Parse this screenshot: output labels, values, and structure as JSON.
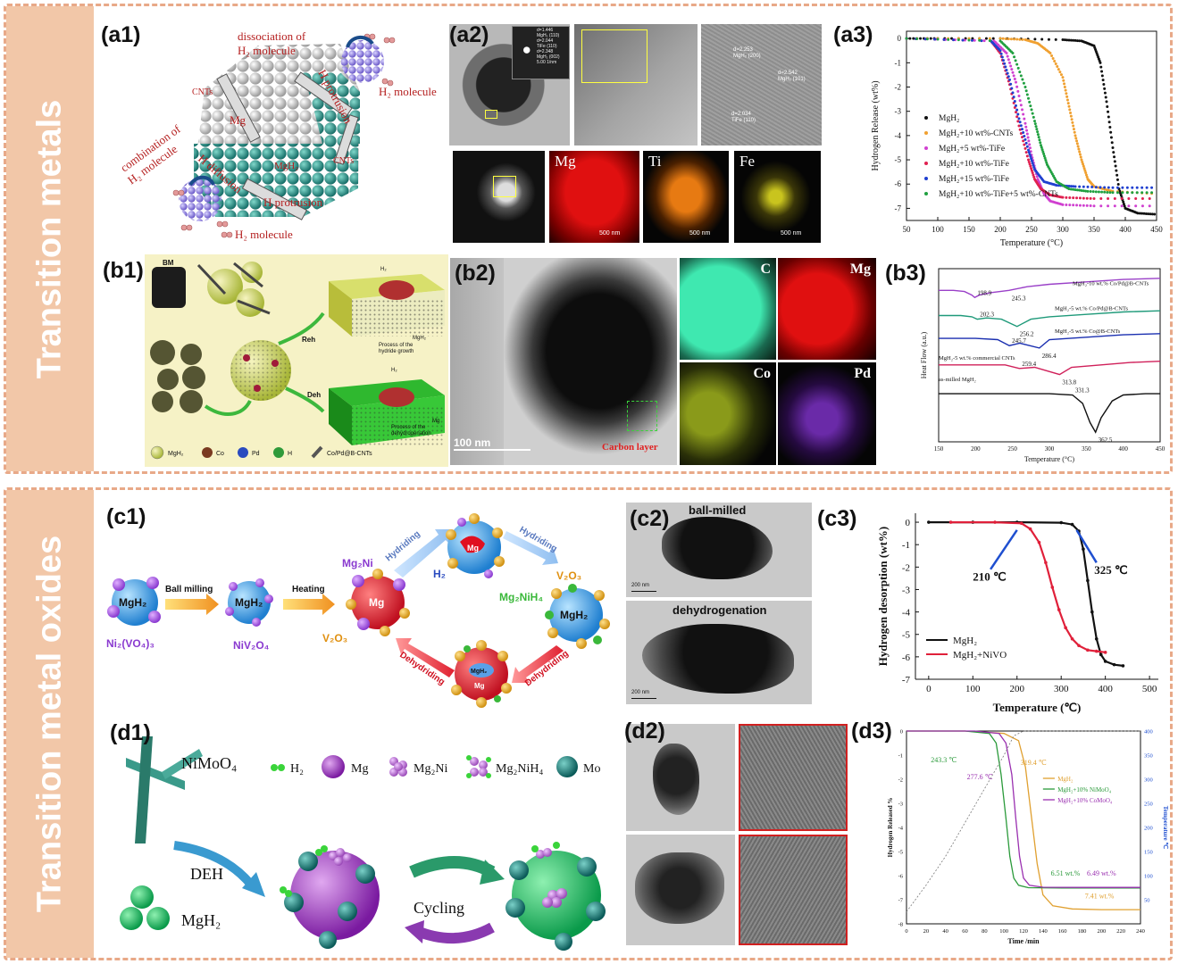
{
  "sections": {
    "top": "Transition metals",
    "bottom": "Transition metal oxides"
  },
  "labels": {
    "a1": "(a1)",
    "a2": "(a2)",
    "a3": "(a3)",
    "b1": "(b1)",
    "b2": "(b2)",
    "b3": "(b3)",
    "c1": "(c1)",
    "c2": "(c2)",
    "c3": "(c3)",
    "d1": "(d1)",
    "d2": "(d2)",
    "d3": "(d3)"
  },
  "a1": {
    "dissociation": "dissociation of",
    "h2_molecule_top": "H₂ molecule",
    "h2_molecule_right": "H₂ molecule",
    "h_protrusion_top": "H protrusion",
    "cnts_left": "CNTs",
    "cnts_right": "CNTs",
    "mg": "Mg",
    "mgh2": "MgH₂",
    "combination": "combination of",
    "h2_molecule_left": "H₂ molecule",
    "h_diffusion": "H diffusion",
    "h_protrusion": "H protrusion",
    "h2_molecule_bottom": "H₂ molecule"
  },
  "a2": {
    "maps": [
      "Mg",
      "Ti",
      "Fe"
    ],
    "scales": [
      "500 nm",
      "500 nm",
      "500 nm"
    ],
    "diffraction": [
      "d=1.446",
      "MgH₂ (110)",
      "d=2.044",
      "TiFe (110)",
      "d=2.348",
      "MgH₂ (002)",
      "5.00 1/nm"
    ],
    "hr_labels": [
      "d=2.253",
      "MgH₂ (200)",
      "d=2.542",
      "MgH₂ (101)",
      "d=2.034",
      "TiFe (110)"
    ]
  },
  "a3": {
    "legend": [
      "MgH₂",
      "MgH₂+10 wt%-CNTs",
      "MgH₂+5  wt%-TiFe",
      "MgH₂+10 wt%-TiFe",
      "MgH₂+15 wt%-TiFe",
      "MgH₂+10 wt%-TiFe+5 wt%-CNTs"
    ],
    "colors": [
      "#111111",
      "#f0a030",
      "#d040d0",
      "#e02050",
      "#2040d0",
      "#20a040"
    ]
  },
  "b1": {
    "bm": "BM",
    "reh": "Reh",
    "deh": "Deh",
    "process_top": [
      "Process of the",
      "hydride growth"
    ],
    "process_bottom": [
      "Process of the",
      "dehydrogenation"
    ],
    "h2": "H₂",
    "mgh2_tag": "MgH₂",
    "mg_tag": "Mg",
    "legend": [
      "MgH₂",
      "Co",
      "Pd",
      "H",
      "Co/Pd@B-CNTs"
    ],
    "legend_colors": [
      "#b9d24a",
      "#7a3a20",
      "#2a4bbf",
      "#2f9a3a",
      "#555555"
    ]
  },
  "b2": {
    "scale": "100 nm",
    "carbon_layer": "Carbon layer",
    "maps": [
      "C",
      "Mg",
      "Co",
      "Pd"
    ]
  },
  "b3": {
    "curves": [
      "MgH₂-10 wt.% Co/Pd@B-CNTs",
      "MgH₂-5 wt.% Co/Pd@B-CNTs",
      "MgH₂-5 wt.% Co@B-CNTs",
      "MgH₂-5 wt.% commercial CNTs",
      "as-milled MgH₂"
    ],
    "colors": [
      "#9a40c8",
      "#1f9a7a",
      "#1a2fb0",
      "#d0205a",
      "#111111"
    ],
    "peaks": [
      "198.9",
      "245.3",
      "202.3",
      "256.2",
      "245.7",
      "286.4",
      "259.4",
      "313.8",
      "331.3",
      "362.5"
    ]
  },
  "c1": {
    "mgh2_start": "MgH₂",
    "ball_milling": "Ball milling",
    "mgh2_mid": "MgH₂",
    "heating": "Heating",
    "ni2vo43": "Ni₂(VO₄)₃",
    "niv2o4": "NiV₂O₄",
    "mg2ni": "Mg₂Ni",
    "v2o3_left": "V₂O₃",
    "mg": "Mg",
    "hydriding_left": "Hydriding",
    "hydriding_right": "Hydriding",
    "h2": "H₂",
    "mg_top": "Mg",
    "v2o3_right": "V₂O₃",
    "mg2nih4": "Mg₂NiH₄",
    "mgh2_right": "MgH₂",
    "dehydriding_left": "Dehydriding",
    "dehydriding_right": "Dehydriding",
    "mgh2_bottom": "MgH₂",
    "mg_bottom": "Mg"
  },
  "c2": {
    "ball_milled": "ball-milled",
    "dehydrogenation": "dehydrogenation",
    "scale": "200 nm"
  },
  "c3": {
    "legend": [
      "MgH₂",
      "MgH₂+NiVO"
    ],
    "colors": [
      "#111111",
      "#e0203a"
    ],
    "annot_left": "210 ℃",
    "annot_right": "325 ℃"
  },
  "d1": {
    "nimoo4": "NiMoO₄",
    "legend": [
      "H₂",
      "Mg",
      "Mg₂Ni",
      "Mg₂NiH₄",
      "Mo"
    ],
    "deh": "DEH",
    "cycling": "Cycling",
    "mgh2": "MgH₂"
  },
  "d3": {
    "legend": [
      "MgH₂",
      "MgH₂+10% NiMoO₄",
      "MgH₂+10% CoMoO₄"
    ],
    "colors": [
      "#e0a030",
      "#2a9a3a",
      "#9a30b0"
    ],
    "annots": [
      "243.3 ℃",
      "277.6 ℃",
      "319.4 ℃",
      "6.51 wt.%",
      "6.49 wt.%",
      "7.41 wt.%"
    ]
  },
  "chart_data": [
    {
      "id": "a3",
      "type": "scatter",
      "xlabel": "Temperature (°C)",
      "ylabel": "Hydrogen Release (wt%)",
      "xlim": [
        50,
        450
      ],
      "ylim": [
        -7.5,
        0.3
      ],
      "xticks": [
        50,
        100,
        150,
        200,
        250,
        300,
        350,
        400,
        450
      ],
      "yticks": [
        0,
        -1,
        -2,
        -3,
        -4,
        -5,
        -6,
        -7
      ],
      "series": [
        {
          "name": "MgH₂",
          "x": [
            50,
            100,
            200,
            300,
            330,
            350,
            360,
            370,
            380,
            390,
            400,
            420,
            450
          ],
          "y": [
            0,
            0,
            0,
            -0.05,
            -0.1,
            -0.3,
            -1.0,
            -2.6,
            -4.5,
            -6.2,
            -7.0,
            -7.2,
            -7.25
          ]
        },
        {
          "name": "MgH₂+10 wt%-CNTs",
          "x": [
            50,
            200,
            240,
            260,
            280,
            300,
            310,
            320,
            330,
            340,
            350,
            380,
            450
          ],
          "y": [
            0,
            0,
            -0.05,
            -0.2,
            -0.6,
            -1.6,
            -2.8,
            -4.0,
            -5.0,
            -5.8,
            -6.1,
            -6.3,
            -6.4
          ]
        },
        {
          "name": "MgH₂+5  wt%-TiFe",
          "x": [
            50,
            190,
            210,
            225,
            240,
            250,
            260,
            270,
            280,
            300,
            350,
            450
          ],
          "y": [
            0,
            -0.1,
            -0.6,
            -1.8,
            -3.5,
            -4.8,
            -5.8,
            -6.4,
            -6.7,
            -6.85,
            -6.9,
            -6.9
          ]
        },
        {
          "name": "MgH₂+10 wt%-TiFe",
          "x": [
            50,
            185,
            200,
            215,
            230,
            245,
            255,
            265,
            280,
            300,
            350,
            450
          ],
          "y": [
            0,
            -0.1,
            -0.6,
            -1.9,
            -3.6,
            -5.0,
            -5.8,
            -6.2,
            -6.45,
            -6.55,
            -6.6,
            -6.6
          ]
        },
        {
          "name": "MgH₂+15 wt%-TiFe",
          "x": [
            50,
            185,
            200,
            215,
            230,
            245,
            255,
            270,
            290,
            320,
            380,
            450
          ],
          "y": [
            0,
            -0.1,
            -0.5,
            -1.7,
            -3.3,
            -4.6,
            -5.4,
            -5.9,
            -6.05,
            -6.1,
            -6.15,
            -6.15
          ]
        },
        {
          "name": "MgH₂+10 wt%-TiFe+5 wt%-CNTs",
          "x": [
            50,
            200,
            220,
            240,
            255,
            265,
            275,
            290,
            310,
            340,
            380,
            450
          ],
          "y": [
            0,
            -0.1,
            -0.6,
            -2.0,
            -3.4,
            -4.4,
            -5.2,
            -5.9,
            -6.2,
            -6.3,
            -6.35,
            -6.35
          ]
        }
      ]
    },
    {
      "id": "b3",
      "type": "line",
      "xlabel": "Temperature (°C)",
      "ylabel": "Heat Flow (a.u.)",
      "xlim": [
        150,
        450
      ],
      "xticks": [
        150,
        200,
        250,
        300,
        350,
        400,
        450
      ],
      "series": [
        {
          "name": "MgH₂-10 wt.% Co/Pd@B-CNTs",
          "x": [
            150,
            170,
            185,
            195,
            198.9,
            205,
            220,
            245.3,
            270,
            300,
            350,
            400,
            450
          ],
          "y": [
            4.3,
            4.3,
            4.25,
            4.1,
            4.0,
            4.1,
            4.2,
            4.3,
            4.45,
            4.55,
            4.65,
            4.75,
            4.8
          ]
        },
        {
          "name": "MgH₂-5 wt.% Co/Pd@B-CNTs",
          "x": [
            150,
            180,
            195,
            202.3,
            215,
            235,
            256.2,
            275,
            300,
            350,
            400,
            450
          ],
          "y": [
            3.25,
            3.25,
            3.2,
            3.1,
            3.15,
            3.1,
            2.8,
            3.1,
            3.2,
            3.3,
            3.4,
            3.45
          ]
        },
        {
          "name": "MgH₂-5 wt.% Co@B-CNTs",
          "x": [
            150,
            200,
            230,
            245.7,
            260,
            286.4,
            300,
            350,
            400,
            450
          ],
          "y": [
            2.3,
            2.3,
            2.25,
            2.0,
            2.1,
            1.9,
            2.25,
            2.35,
            2.45,
            2.5
          ]
        },
        {
          "name": "MgH₂-5 wt.% commercial CNTs",
          "x": [
            150,
            200,
            240,
            259.4,
            280,
            313.8,
            330,
            370,
            410,
            450
          ],
          "y": [
            1.2,
            1.2,
            1.2,
            1.05,
            1.1,
            0.8,
            1.1,
            1.2,
            1.3,
            1.35
          ]
        },
        {
          "name": "as-milled MgH₂",
          "x": [
            150,
            200,
            250,
            300,
            331.3,
            345,
            355,
            362.5,
            370,
            385,
            400,
            430,
            450
          ],
          "y": [
            0,
            0,
            0,
            0,
            -0.05,
            -0.4,
            -1.2,
            -1.6,
            -1.0,
            -0.3,
            -0.05,
            0,
            0
          ]
        }
      ]
    },
    {
      "id": "c3",
      "type": "line",
      "xlabel": "Temperature (℃)",
      "ylabel": "Hydrogen desorption (wt%)",
      "xlim": [
        -30,
        520
      ],
      "ylim": [
        -7,
        0.4
      ],
      "xticks": [
        0,
        100,
        200,
        300,
        400,
        500
      ],
      "yticks": [
        0,
        -1,
        -2,
        -3,
        -4,
        -5,
        -6,
        -7
      ],
      "series": [
        {
          "name": "MgH₂",
          "x": [
            0,
            100,
            200,
            300,
            325,
            340,
            350,
            360,
            370,
            380,
            390,
            400,
            420,
            440
          ],
          "y": [
            0,
            0,
            0,
            -0.02,
            -0.1,
            -0.4,
            -1.2,
            -2.6,
            -4.0,
            -5.2,
            -5.9,
            -6.2,
            -6.35,
            -6.4
          ]
        },
        {
          "name": "MgH₂+NiVO",
          "x": [
            50,
            150,
            210,
            230,
            250,
            265,
            280,
            295,
            310,
            325,
            340,
            360,
            380,
            400
          ],
          "y": [
            0,
            0,
            -0.05,
            -0.3,
            -0.9,
            -1.8,
            -2.9,
            -3.9,
            -4.7,
            -5.2,
            -5.5,
            -5.7,
            -5.75,
            -5.8
          ]
        }
      ]
    },
    {
      "id": "d3",
      "type": "line",
      "xlabel": "Time /min",
      "ylabel": "Hydrogen Released %",
      "ylabel_right": "Temperature ℃",
      "xlim": [
        0,
        240
      ],
      "ylim": [
        -8,
        0
      ],
      "ylim_right": [
        0,
        400
      ],
      "xticks": [
        0,
        20,
        40,
        60,
        80,
        100,
        120,
        140,
        160,
        180,
        200,
        220,
        240
      ],
      "yticks": [
        0,
        -1,
        -2,
        -3,
        -4,
        -5,
        -6,
        -7,
        -8
      ],
      "yticks_right": [
        50,
        100,
        150,
        200,
        250,
        300,
        350,
        400
      ],
      "series": [
        {
          "name": "MgH₂",
          "x": [
            0,
            60,
            100,
            115,
            122,
            128,
            134,
            140,
            150,
            170,
            200,
            240
          ],
          "y": [
            0,
            0,
            -0.1,
            -0.4,
            -1.5,
            -3.5,
            -5.5,
            -6.8,
            -7.25,
            -7.38,
            -7.41,
            -7.41
          ]
        },
        {
          "name": "MgH₂+10% NiMoO₄",
          "x": [
            0,
            60,
            85,
            92,
            97,
            102,
            106,
            110,
            115,
            125,
            160,
            240
          ],
          "y": [
            0,
            0,
            -0.1,
            -0.5,
            -1.8,
            -3.6,
            -5.2,
            -6.1,
            -6.4,
            -6.5,
            -6.51,
            -6.51
          ]
        },
        {
          "name": "MgH₂+10% CoMoO₄",
          "x": [
            0,
            70,
            95,
            102,
            108,
            112,
            116,
            120,
            126,
            140,
            180,
            240
          ],
          "y": [
            0,
            0,
            -0.1,
            -0.5,
            -1.8,
            -3.6,
            -5.2,
            -6.1,
            -6.4,
            -6.48,
            -6.49,
            -6.49
          ]
        },
        {
          "name": "Temperature",
          "axis": "right",
          "x": [
            0,
            20,
            40,
            60,
            80,
            100,
            110,
            120,
            240
          ],
          "y": [
            25,
            80,
            140,
            210,
            280,
            350,
            390,
            400,
            400
          ]
        }
      ]
    }
  ]
}
